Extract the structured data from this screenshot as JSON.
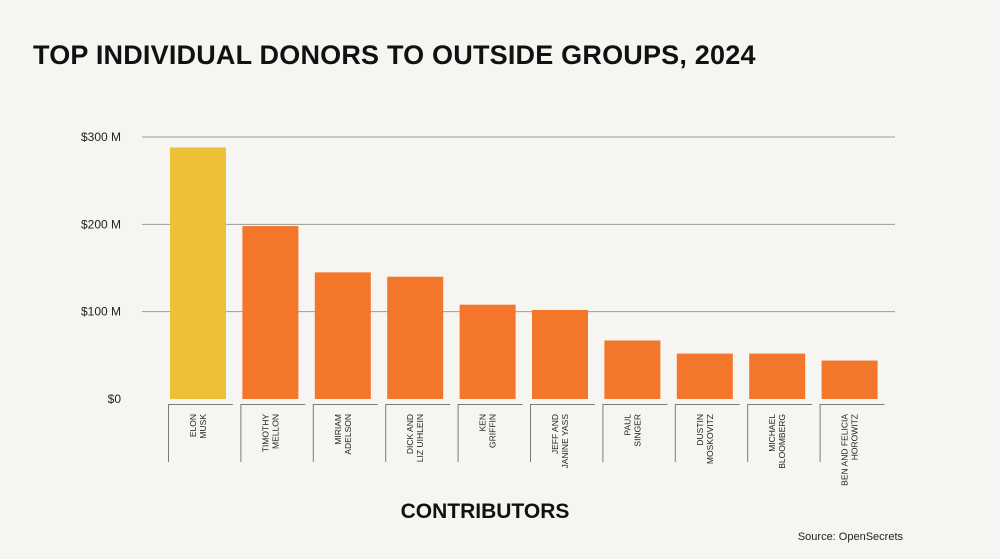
{
  "chart_data": {
    "type": "bar",
    "title": "TOP INDIVIDUAL DONORS TO OUTSIDE GROUPS, 2024",
    "xlabel": "CONTRIBUTORS",
    "ylabel": "",
    "ylim": [
      0,
      300
    ],
    "yticks": [
      {
        "value": 300,
        "label": "$300 M"
      },
      {
        "value": 200,
        "label": "$200 M"
      },
      {
        "value": 100,
        "label": "$100 M"
      },
      {
        "value": 0,
        "label": "$0"
      }
    ],
    "grid": true,
    "categories": [
      [
        "ELON",
        "MUSK"
      ],
      [
        "TIMOTHY",
        "MELLON"
      ],
      [
        "MIRIAM",
        "ADELSON"
      ],
      [
        "DICK AND",
        "LIZ UIHLEIN"
      ],
      [
        "KEN",
        "GRIFFIN"
      ],
      [
        "JEFF AND",
        "JANINE YASS"
      ],
      [
        "PAUL",
        "SINGER"
      ],
      [
        "DUSTIN",
        "MOSKOVITZ"
      ],
      [
        "MICHAEL",
        "BLOOMBERG"
      ],
      [
        "BEN AND FELICIA",
        "HOROWITZ"
      ]
    ],
    "values": [
      288,
      198,
      145,
      140,
      108,
      102,
      67,
      52,
      52,
      44
    ],
    "bar_colors": [
      "#ecc135",
      "#f3762a",
      "#f3762a",
      "#f3762a",
      "#f3762a",
      "#f3762a",
      "#f3762a",
      "#f3762a",
      "#f3762a",
      "#f3762a"
    ]
  },
  "source": "Source: OpenSecrets"
}
